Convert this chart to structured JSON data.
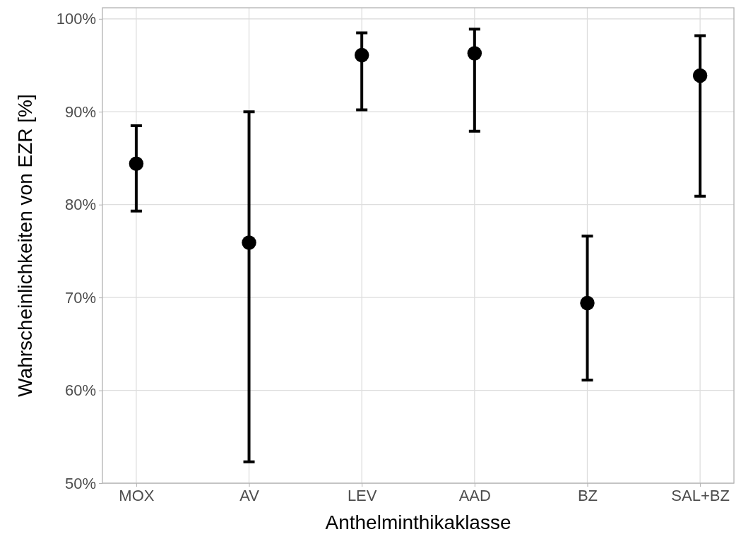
{
  "chart_data": {
    "type": "scatter",
    "xlabel": "Anthelminthikaklasse",
    "ylabel": "Wahrscheinlichkeiten von EZR [%]",
    "categories": [
      "MOX",
      "AV",
      "LEV",
      "AAD",
      "BZ",
      "SAL+BZ"
    ],
    "series": [
      {
        "color": "#000000",
        "values": [
          84.4,
          75.9,
          96.1,
          96.3,
          69.4,
          93.9
        ],
        "errors": [
          [
            79.3,
            88.5
          ],
          [
            52.3,
            90.0
          ],
          [
            90.2,
            98.5
          ],
          [
            87.9,
            98.9
          ],
          [
            61.1,
            76.6
          ],
          [
            80.9,
            98.2
          ]
        ]
      }
    ],
    "ylim": [
      50,
      101.2
    ],
    "yticks": [
      {
        "value": 50,
        "label": "50%"
      },
      {
        "value": 60,
        "label": "60%"
      },
      {
        "value": 70,
        "label": "70%"
      },
      {
        "value": 80,
        "label": "80%"
      },
      {
        "value": 90,
        "label": "90%"
      },
      {
        "value": 100,
        "label": "100%"
      }
    ],
    "grid": true,
    "marker": "circle"
  }
}
